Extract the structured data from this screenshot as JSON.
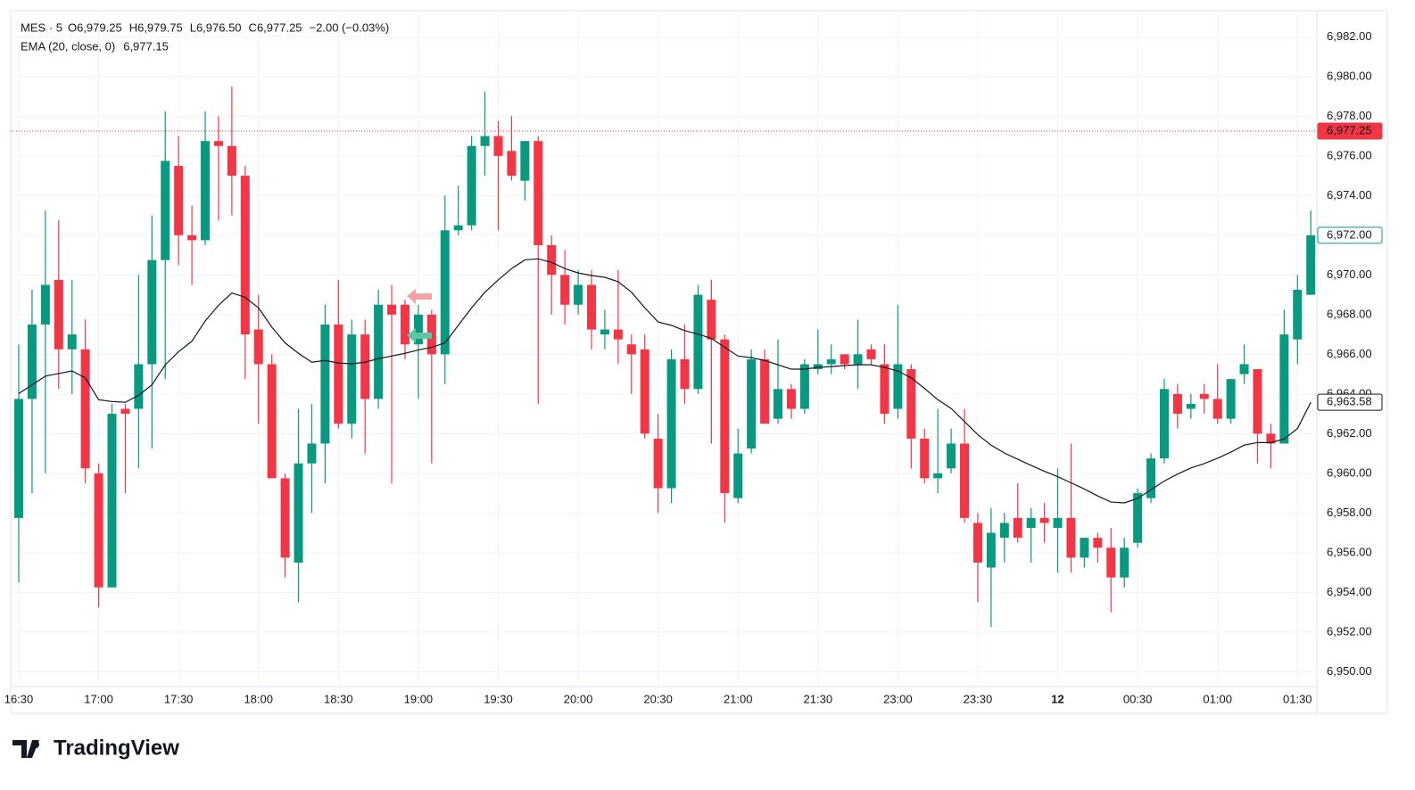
{
  "chart_data": {
    "type": "candlestick",
    "legend": {
      "symbol": "MES · 5",
      "o": "O",
      "open": "6,979.25",
      "h": "H",
      "high": "6,979.75",
      "l": "L",
      "low": "6,976.50",
      "c": "C",
      "close": "6,977.25",
      "change": "−2.00 (−0.03%)",
      "indicator": "EMA (20, close, 0)",
      "indicator_value": "6,977.15"
    },
    "watermark": "TradingView",
    "up_color": "#089981",
    "down_color": "#f23645",
    "categories": [
      "16:30",
      null,
      null,
      null,
      null,
      null,
      "17:00",
      null,
      null,
      null,
      null,
      null,
      "17:30",
      null,
      null,
      null,
      null,
      null,
      "18:00",
      null,
      null,
      null,
      null,
      null,
      "18:30",
      null,
      null,
      null,
      null,
      null,
      "19:00",
      null,
      null,
      null,
      null,
      null,
      "19:30",
      null,
      null,
      null,
      null,
      null,
      "20:00",
      null,
      null,
      null,
      null,
      null,
      "20:30",
      null,
      null,
      null,
      null,
      null,
      "21:00",
      null,
      null,
      null,
      null,
      null,
      "21:30",
      null,
      null,
      null,
      null,
      null,
      "23:00",
      null,
      null,
      null,
      null,
      null,
      "23:30",
      null,
      null,
      null,
      null,
      null,
      "12",
      null,
      null,
      null,
      null,
      null,
      "00:30",
      null,
      null,
      null,
      null,
      null,
      "01:00",
      null,
      null,
      null,
      null,
      null,
      "01:30",
      null
    ],
    "open": [
      6957.75,
      6963.75,
      6967.5,
      6969.75,
      6966.25,
      6966.25,
      6960,
      6954.25,
      6963.25,
      6963.25,
      6965.5,
      6970.75,
      6975.5,
      6972,
      6971.75,
      6976.75,
      6976.5,
      6975,
      6967.25,
      6965.5,
      6959.75,
      6955.5,
      6960.5,
      6961.5,
      6967.5,
      6962.5,
      6967,
      6963.75,
      6968.5,
      6968.5,
      6966.5,
      6968,
      6966,
      6972.25,
      6972.5,
      6976.5,
      6977,
      6976.25,
      6974.75,
      6976.75,
      6971.5,
      6970,
      6968.5,
      6969.5,
      6967,
      6967.25,
      6966.5,
      6966.25,
      6961.75,
      6959.25,
      6965.75,
      6964.25,
      6968.75,
      6966.75,
      6958.75,
      6961.25,
      6965.75,
      6962.75,
      6964.25,
      6963.25,
      6965.25,
      6965.5,
      6966,
      6965.5,
      6966.25,
      6965.5,
      6963.25,
      6965.25,
      6961.75,
      6959.75,
      6960.25,
      6961.5,
      6957.5,
      6955.25,
      6956.75,
      6957.75,
      6957.25,
      6957.75,
      6957.25,
      6957.75,
      6955.75,
      6956.75,
      6956.25,
      6954.75,
      6956.5,
      6958.75,
      6960.75,
      6964,
      6963.25,
      6964,
      6963.75,
      6962.75,
      6965,
      6965.25,
      6962,
      6961.5,
      6966.75,
      6969
    ],
    "high": [
      6966.5,
      6969.25,
      6973.25,
      6972.75,
      6969.75,
      6967.75,
      6960.5,
      6963.5,
      6963.5,
      6970,
      6973,
      6978.25,
      6977,
      6973.5,
      6978.25,
      6978,
      6979.5,
      6975.5,
      6969,
      6966,
      6960,
      6963.25,
      6963.5,
      6968.5,
      6969.75,
      6967.75,
      6967.75,
      6969.25,
      6969.5,
      6968.75,
      6968.5,
      6968.25,
      6974,
      6974.5,
      6977,
      6979.25,
      6977.75,
      6978,
      6976.75,
      6977,
      6972,
      6971.25,
      6970.25,
      6970.25,
      6968.25,
      6970.25,
      6967,
      6967,
      6963,
      6966.25,
      6967.5,
      6969.5,
      6969.75,
      6967,
      6962.25,
      6966.25,
      6966.25,
      6966.75,
      6964.5,
      6965.75,
      6967.25,
      6966.5,
      6966,
      6967.75,
      6966.5,
      6966.5,
      6968.5,
      6965.5,
      6962.25,
      6963.25,
      6962.25,
      6963.25,
      6958,
      6958.25,
      6958,
      6959.5,
      6958.25,
      6958.5,
      6960.25,
      6961.5,
      6956.75,
      6957,
      6957.25,
      6956.75,
      6959.25,
      6961,
      6964.75,
      6964.5,
      6964,
      6964.5,
      6965.5,
      6964.75,
      6966.5,
      6965.25,
      6962.5,
      6968.25,
      6970,
      6973.25
    ],
    "low": [
      6954.5,
      6959,
      6960,
      6964.25,
      6964,
      6959.5,
      6953.25,
      6954.25,
      6959,
      6960.25,
      6961.25,
      6964.75,
      6970.5,
      6969.5,
      6971.5,
      6972.75,
      6973,
      6964.75,
      6962.5,
      6959.75,
      6954.75,
      6953.5,
      6958,
      6959.5,
      6962.25,
      6961.75,
      6961,
      6963.25,
      6959.5,
      6965.75,
      6963.75,
      6960.5,
      6964.5,
      6972,
      6972.25,
      6975,
      6972.25,
      6974.75,
      6973.75,
      6963.5,
      6968,
      6967.5,
      6968,
      6966.25,
      6966.25,
      6965.5,
      6964,
      6961.75,
      6958,
      6958.5,
      6963.5,
      6964,
      6961.5,
      6957.5,
      6958.5,
      6961,
      6962.5,
      6962.5,
      6962.75,
      6963,
      6965,
      6965,
      6965.25,
      6964.25,
      6965.5,
      6962.5,
      6962.75,
      6960.25,
      6959.5,
      6959,
      6960,
      6957.5,
      6953.5,
      6952.25,
      6955.5,
      6956.5,
      6955.5,
      6956.5,
      6955,
      6955,
      6955.25,
      6955.5,
      6953,
      6954.25,
      6956.25,
      6958.5,
      6960.5,
      6962.25,
      6962.75,
      6963,
      6962.5,
      6962.5,
      6964.5,
      6960.5,
      6960.25,
      6961.5,
      6965.5,
      6969
    ],
    "close": [
      6963.75,
      6967.5,
      6969.5,
      6966.25,
      6967,
      6960.25,
      6954.25,
      6963,
      6963,
      6965.5,
      6970.75,
      6975.75,
      6972,
      6971.75,
      6976.75,
      6976.5,
      6975,
      6967,
      6965.5,
      6959.75,
      6955.75,
      6960.5,
      6961.5,
      6967.5,
      6962.5,
      6967,
      6963.75,
      6968.5,
      6968,
      6966.5,
      6968,
      6966,
      6972.25,
      6972.5,
      6976.5,
      6977,
      6976,
      6975,
      6976.75,
      6971.5,
      6970,
      6968.5,
      6969.5,
      6967.25,
      6967.25,
      6966.75,
      6966,
      6962,
      6959.25,
      6965.75,
      6964.25,
      6969,
      6966.75,
      6959,
      6961,
      6965.75,
      6962.5,
      6964.25,
      6963.25,
      6965.5,
      6965.5,
      6965.75,
      6965.5,
      6966,
      6965.75,
      6963,
      6965.5,
      6961.75,
      6959.75,
      6960,
      6961.5,
      6957.75,
      6955.5,
      6957,
      6957.5,
      6956.75,
      6957.75,
      6957.5,
      6957.75,
      6955.75,
      6956.75,
      6956.25,
      6954.75,
      6956.25,
      6959,
      6960.75,
      6964.25,
      6963,
      6963.5,
      6963.75,
      6962.75,
      6964.75,
      6965.5,
      6962,
      6961.5,
      6967,
      6969.25,
      6972
    ],
    "ema": {
      "color": "#131722",
      "values": [
        6964.02,
        6964.46,
        6964.9,
        6965.03,
        6965.16,
        6964.81,
        6963.71,
        6963.62,
        6963.58,
        6963.93,
        6964.46,
        6965.47,
        6966.13,
        6966.66,
        6967.68,
        6968.47,
        6969.09,
        6968.87,
        6968.34,
        6967.37,
        6966.57,
        6966.05,
        6965.6,
        6965.69,
        6965.56,
        6965.52,
        6965.6,
        6965.78,
        6965.91,
        6966.05,
        6966.22,
        6966.35,
        6966.57,
        6967.46,
        6968.34,
        6969.13,
        6969.75,
        6970.32,
        6970.76,
        6970.81,
        6970.63,
        6970.32,
        6970.1,
        6969.97,
        6969.88,
        6969.66,
        6969.13,
        6968.34,
        6967.63,
        6967.46,
        6967.19,
        6967.02,
        6966.8,
        6966.35,
        6965.91,
        6965.83,
        6965.69,
        6965.47,
        6965.25,
        6965.25,
        6965.34,
        6965.38,
        6965.43,
        6965.47,
        6965.47,
        6965.34,
        6965.16,
        6964.81,
        6964.28,
        6963.71,
        6963.27,
        6962.61,
        6961.95,
        6961.42,
        6961.02,
        6960.71,
        6960.4,
        6960.1,
        6959.83,
        6959.52,
        6959.21,
        6958.86,
        6958.55,
        6958.51,
        6958.73,
        6959.17,
        6959.61,
        6959.96,
        6960.27,
        6960.49,
        6960.76,
        6961.07,
        6961.42,
        6961.55,
        6961.55,
        6961.73,
        6962.26,
        6963.58
      ]
    },
    "price_lines": [
      {
        "value": 6977.25,
        "label": "6,977.25",
        "color": "#f23645",
        "style": "dotted"
      },
      {
        "value": 6972,
        "label": "6,972.00",
        "color": "#089981",
        "style": "outline"
      },
      {
        "value": 6963.58,
        "label": "6,963.58",
        "color": "#131722",
        "style": "outline"
      }
    ],
    "ylim": [
      6949.25,
      6983.32
    ],
    "yticks": [
      {
        "value": 6950,
        "label": "6,950.00"
      },
      {
        "value": 6952,
        "label": "6,952.00"
      },
      {
        "value": 6954,
        "label": "6,954.00"
      },
      {
        "value": 6956,
        "label": "6,956.00"
      },
      {
        "value": 6958,
        "label": "6,958.00"
      },
      {
        "value": 6960,
        "label": "6,960.00"
      },
      {
        "value": 6962,
        "label": "6,962.00"
      },
      {
        "value": 6964,
        "label": "6,964.00"
      },
      {
        "value": 6966,
        "label": "6,966.00"
      },
      {
        "value": 6968,
        "label": "6,968.00"
      },
      {
        "value": 6970,
        "label": "6,970.00"
      },
      {
        "value": 6972,
        "label": "6,972.00"
      },
      {
        "value": 6974,
        "label": "6,974.00"
      },
      {
        "value": 6976,
        "label": "6,976.00"
      },
      {
        "value": 6978,
        "label": "6,978.00"
      },
      {
        "value": 6980,
        "label": "6,980.00"
      },
      {
        "value": 6982,
        "label": "6,982.00"
      }
    ],
    "grid": true
  }
}
